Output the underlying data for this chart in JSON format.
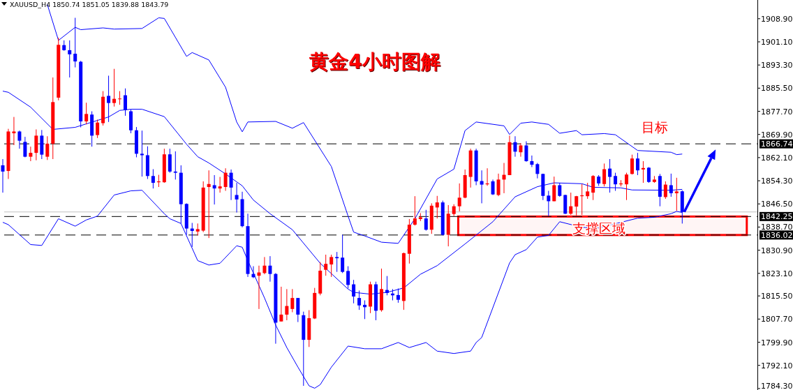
{
  "chart_data": {
    "type": "candlestick",
    "title": "黄金4小时图解",
    "categories": [
      null,
      null,
      null,
      null,
      null,
      null,
      null,
      null,
      null,
      null,
      null,
      null,
      null,
      null,
      null,
      null,
      null,
      null,
      null,
      null,
      null,
      null,
      null,
      null,
      null,
      null,
      null,
      null,
      null,
      null,
      null,
      null,
      null,
      null,
      null,
      null,
      null,
      null,
      null,
      null,
      null,
      null,
      null,
      null,
      null,
      null,
      null,
      null,
      null,
      null,
      null,
      null,
      null,
      null,
      null,
      null,
      null,
      null,
      null,
      null,
      null,
      null,
      null,
      null,
      null,
      null,
      null,
      null,
      null,
      null,
      null,
      null,
      null,
      null,
      null,
      null,
      null,
      null,
      null,
      null,
      null,
      null,
      null,
      null,
      null,
      null,
      null,
      null,
      null,
      null,
      null,
      null,
      null,
      null,
      null,
      null,
      null,
      null,
      null,
      null,
      null,
      null,
      null,
      null,
      null,
      null,
      null,
      null,
      null,
      null,
      null,
      null,
      null,
      null,
      null,
      null,
      null,
      null,
      null,
      null,
      null,
      null,
      null,
      null,
      null,
      null,
      null,
      null,
      null,
      null,
      null,
      null,
      null,
      null,
      null,
      null
    ],
    "ohlc": [
      [
        1859.5,
        1861.6,
        1850.3,
        1857.4
      ],
      [
        1857.6,
        1871.8,
        1854.9,
        1870.9
      ],
      [
        1870.3,
        1875.8,
        1866.3,
        1870.9
      ],
      [
        1870.9,
        1871.2,
        1865.1,
        1867.8
      ],
      [
        1867.4,
        1869.1,
        1862.2,
        1862.4
      ],
      [
        1862.4,
        1865.8,
        1860.9,
        1863.7
      ],
      [
        1863.7,
        1871.6,
        1861.2,
        1869.5
      ],
      [
        1869.5,
        1871.4,
        1861.6,
        1863.1
      ],
      [
        1862.4,
        1869.3,
        1861.3,
        1866.8
      ],
      [
        1866.8,
        1889.1,
        1861.6,
        1880.8
      ],
      [
        1882.3,
        1902.5,
        1881.4,
        1900.1
      ],
      [
        1900.0,
        1901.6,
        1898.1,
        1898.3
      ],
      [
        1898.3,
        1901.6,
        1889.1,
        1896.9
      ],
      [
        1897.1,
        1909.2,
        1892.5,
        1894.5
      ],
      [
        1894.4,
        1894.7,
        1872.3,
        1874.3
      ],
      [
        1874.3,
        1880.6,
        1873.3,
        1876.8
      ],
      [
        1876.6,
        1877.7,
        1865.8,
        1869.5
      ],
      [
        1869.7,
        1874.9,
        1868.7,
        1873.9
      ],
      [
        1873.7,
        1884.5,
        1872.9,
        1882.6
      ],
      [
        1882.9,
        1889.7,
        1874.1,
        1880.5
      ],
      [
        1880.5,
        1892.0,
        1879.3,
        1881.9
      ],
      [
        1881.9,
        1884.5,
        1879.9,
        1882.0
      ],
      [
        1883.1,
        1885.4,
        1876.2,
        1878.1
      ],
      [
        1877.7,
        1878.3,
        1870.3,
        1871.3
      ],
      [
        1871.3,
        1872.4,
        1862.2,
        1863.4
      ],
      [
        1863.4,
        1871.2,
        1855.7,
        1862.9
      ],
      [
        1862.9,
        1865.9,
        1854.9,
        1855.9
      ],
      [
        1855.9,
        1858.2,
        1851.7,
        1853.6
      ],
      [
        1853.8,
        1856.3,
        1852.2,
        1854.1
      ],
      [
        1853.8,
        1865.1,
        1853.6,
        1863.2
      ],
      [
        1863.2,
        1865.1,
        1857.0,
        1857.4
      ],
      [
        1857.4,
        1864.2,
        1854.7,
        1857.0
      ],
      [
        1857.0,
        1859.5,
        1839.9,
        1846.4
      ],
      [
        1846.5,
        1846.7,
        1836.1,
        1838.2
      ],
      [
        1838.2,
        1840.1,
        1832.0,
        1837.4
      ],
      [
        1837.2,
        1839.9,
        1835.9,
        1838.0
      ],
      [
        1837.5,
        1854.1,
        1837.0,
        1852.0
      ],
      [
        1852.2,
        1857.8,
        1835.0,
        1853.2
      ],
      [
        1852.8,
        1856.2,
        1846.3,
        1851.7
      ],
      [
        1851.7,
        1855.6,
        1850.3,
        1852.4
      ],
      [
        1852.2,
        1858.5,
        1850.9,
        1857.0
      ],
      [
        1857.0,
        1858.1,
        1847.8,
        1852.0
      ],
      [
        1849.5,
        1853.6,
        1843.6,
        1848.0
      ],
      [
        1848.1,
        1850.6,
        1838.6,
        1839.0
      ],
      [
        1839.0,
        1843.2,
        1821.9,
        1822.9
      ],
      [
        1822.9,
        1825.5,
        1821.5,
        1821.8
      ],
      [
        1822.3,
        1825.7,
        1811.1,
        1823.4
      ],
      [
        1823.2,
        1828.6,
        1822.8,
        1825.7
      ],
      [
        1825.7,
        1828.9,
        1820.3,
        1822.9
      ],
      [
        1822.9,
        1823.2,
        1799.4,
        1806.5
      ],
      [
        1806.9,
        1818.6,
        1806.9,
        1809.2
      ],
      [
        1809.2,
        1817.8,
        1807.3,
        1812.1
      ],
      [
        1811.1,
        1817.8,
        1810.0,
        1814.8
      ],
      [
        1814.8,
        1814.8,
        1806.7,
        1809.2
      ],
      [
        1809.0,
        1810.2,
        1785.2,
        1800.7
      ],
      [
        1800.7,
        1810.7,
        1798.3,
        1808.0
      ],
      [
        1807.9,
        1818.2,
        1807.7,
        1816.5
      ],
      [
        1816.3,
        1826.9,
        1815.7,
        1824.0
      ],
      [
        1824.3,
        1829.4,
        1822.3,
        1826.3
      ],
      [
        1826.1,
        1829.4,
        1821.9,
        1828.6
      ],
      [
        1828.6,
        1830.3,
        1823.6,
        1828.2
      ],
      [
        1828.4,
        1836.1,
        1823.2,
        1823.6
      ],
      [
        1823.9,
        1825.5,
        1818.0,
        1819.2
      ],
      [
        1819.4,
        1820.9,
        1813.0,
        1815.3
      ],
      [
        1814.8,
        1817.3,
        1810.8,
        1812.3
      ],
      [
        1812.5,
        1814.0,
        1807.7,
        1811.7
      ],
      [
        1811.9,
        1820.3,
        1809.7,
        1819.4
      ],
      [
        1819.4,
        1820.3,
        1807.3,
        1810.5
      ],
      [
        1810.7,
        1824.7,
        1810.2,
        1817.8
      ],
      [
        1817.5,
        1822.2,
        1815.7,
        1816.5
      ],
      [
        1816.3,
        1817.8,
        1814.0,
        1815.7
      ],
      [
        1815.8,
        1818.0,
        1813.2,
        1814.2
      ],
      [
        1813.8,
        1830.1,
        1810.8,
        1829.9
      ],
      [
        1829.7,
        1841.4,
        1826.4,
        1839.5
      ],
      [
        1839.5,
        1849.1,
        1839.2,
        1841.6
      ],
      [
        1841.4,
        1843.4,
        1840.7,
        1842.0
      ],
      [
        1841.6,
        1844.5,
        1837.5,
        1837.8
      ],
      [
        1837.8,
        1846.7,
        1836.4,
        1845.9
      ],
      [
        1845.3,
        1849.2,
        1841.6,
        1847.0
      ],
      [
        1847.0,
        1847.6,
        1835.9,
        1836.1
      ],
      [
        1836.1,
        1846.1,
        1832.2,
        1843.2
      ],
      [
        1843.1,
        1846.4,
        1842.4,
        1845.7
      ],
      [
        1845.7,
        1853.4,
        1844.0,
        1848.6
      ],
      [
        1848.6,
        1858.1,
        1848.4,
        1856.2
      ],
      [
        1855.6,
        1865.1,
        1852.0,
        1864.5
      ],
      [
        1864.5,
        1865.1,
        1852.8,
        1854.1
      ],
      [
        1854.2,
        1857.8,
        1846.7,
        1853.0
      ],
      [
        1853.1,
        1858.5,
        1852.6,
        1853.4
      ],
      [
        1854.1,
        1854.7,
        1849.5,
        1849.7
      ],
      [
        1849.5,
        1856.7,
        1849.1,
        1854.7
      ],
      [
        1854.7,
        1860.3,
        1850.1,
        1856.3
      ],
      [
        1856.2,
        1869.5,
        1856.2,
        1867.3
      ],
      [
        1867.3,
        1869.3,
        1862.4,
        1864.1
      ],
      [
        1863.9,
        1867.0,
        1862.4,
        1866.2
      ],
      [
        1866.2,
        1867.6,
        1860.7,
        1860.9
      ],
      [
        1860.9,
        1862.8,
        1858.9,
        1859.7
      ],
      [
        1859.9,
        1860.3,
        1855.1,
        1856.6
      ],
      [
        1856.6,
        1856.7,
        1847.8,
        1849.2
      ],
      [
        1849.3,
        1850.9,
        1842.4,
        1847.4
      ],
      [
        1847.4,
        1855.7,
        1847.4,
        1852.8
      ],
      [
        1852.8,
        1853.6,
        1848.9,
        1849.2
      ],
      [
        1849.5,
        1849.6,
        1843.1,
        1843.2
      ],
      [
        1843.2,
        1850.3,
        1842.8,
        1845.7
      ],
      [
        1845.6,
        1849.2,
        1842.6,
        1849.1
      ],
      [
        1849.1,
        1853.2,
        1842.8,
        1849.4
      ],
      [
        1849.1,
        1853.6,
        1848.2,
        1850.7
      ],
      [
        1850.3,
        1856.2,
        1847.8,
        1855.9
      ],
      [
        1855.7,
        1856.2,
        1852.6,
        1853.4
      ],
      [
        1853.2,
        1860.1,
        1852.4,
        1858.2
      ],
      [
        1858.4,
        1861.6,
        1850.3,
        1855.6
      ],
      [
        1855.9,
        1857.0,
        1850.9,
        1853.1
      ],
      [
        1853.1,
        1854.5,
        1852.4,
        1853.4
      ],
      [
        1853.1,
        1857.0,
        1847.8,
        1856.4
      ],
      [
        1856.6,
        1863.1,
        1856.4,
        1861.8
      ],
      [
        1861.8,
        1863.7,
        1856.2,
        1857.8
      ],
      [
        1858.1,
        1860.9,
        1853.6,
        1858.6
      ],
      [
        1858.7,
        1858.9,
        1853.6,
        1853.9
      ],
      [
        1853.9,
        1855.9,
        1853.6,
        1854.7
      ],
      [
        1855.9,
        1856.6,
        1845.7,
        1848.9
      ],
      [
        1848.8,
        1854.1,
        1848.2,
        1853.0
      ],
      [
        1852.8,
        1856.7,
        1848.9,
        1850.1
      ],
      [
        1850.1,
        1855.3,
        1844.2,
        1850.7
      ],
      [
        1850.74,
        1851.05,
        1839.88,
        1843.79
      ],
      null,
      null,
      null,
      null,
      null,
      null,
      null,
      null,
      null,
      null,
      null,
      null,
      null
    ],
    "colors": [
      "#0000ff",
      "#ff0000",
      "#ff0000",
      "#0000ff",
      "#0000ff",
      "#ff0000",
      "#ff0000",
      "#0000ff",
      "#ff0000",
      "#ff0000",
      "#ff0000",
      "#0000ff",
      "#0000ff",
      "#0000ff",
      "#0000ff",
      "#ff0000",
      "#0000ff",
      "#ff0000",
      "#ff0000",
      "#0000ff",
      "#ff0000",
      "#ff0000",
      "#0000ff",
      "#0000ff",
      "#0000ff",
      "#0000ff",
      "#0000ff",
      "#0000ff",
      "#ff0000",
      "#ff0000",
      "#0000ff",
      "#0000ff",
      "#0000ff",
      "#0000ff",
      "#0000ff",
      "#ff0000",
      "#ff0000",
      "#ff0000",
      "#0000ff",
      "#ff0000",
      "#ff0000",
      "#0000ff",
      "#0000ff",
      "#0000ff",
      "#0000ff",
      "#0000ff",
      "#ff0000",
      "#ff0000",
      "#0000ff",
      "#0000ff",
      "#ff0000",
      "#ff0000",
      "#ff0000",
      "#0000ff",
      "#0000ff",
      "#ff0000",
      "#ff0000",
      "#ff0000",
      "#ff0000",
      "#ff0000",
      "#0000ff",
      "#0000ff",
      "#0000ff",
      "#0000ff",
      "#0000ff",
      "#0000ff",
      "#ff0000",
      "#0000ff",
      "#ff0000",
      "#0000ff",
      "#0000ff",
      "#0000ff",
      "#ff0000",
      "#ff0000",
      "#ff0000",
      "#ff0000",
      "#0000ff",
      "#ff0000",
      "#ff0000",
      "#0000ff",
      "#ff0000",
      "#ff0000",
      "#ff0000",
      "#ff0000",
      "#ff0000",
      "#0000ff",
      "#0000ff",
      "#ff0000",
      "#0000ff",
      "#ff0000",
      "#ff0000",
      "#ff0000",
      "#0000ff",
      "#ff0000",
      "#0000ff",
      "#0000ff",
      "#0000ff",
      "#0000ff",
      "#0000ff",
      "#ff0000",
      "#0000ff",
      "#0000ff",
      "#ff0000",
      "#ff0000",
      "#ff0000",
      "#ff0000",
      "#ff0000",
      "#0000ff",
      "#ff0000",
      "#0000ff",
      "#0000ff",
      "#ff0000",
      "#ff0000",
      "#ff0000",
      "#0000ff",
      "#ff0000",
      "#0000ff",
      "#ff0000",
      "#0000ff",
      "#ff0000",
      "#0000ff",
      "#ff0000",
      "#0000ff",
      null,
      null,
      null,
      null,
      null,
      null,
      null,
      null,
      null,
      null,
      null,
      null,
      null
    ],
    "series": [
      {
        "type": "line",
        "color": "#0000ff",
        "values": [
          null,
          null,
          null,
          null,
          null,
          null,
          null,
          null,
          1913.7,
          null,
          1901.6,
          null,
          null,
          1906.0,
          1905.2,
          null,
          null,
          null,
          1905.8,
          null,
          1905.4,
          null,
          null,
          null,
          null,
          1905.6,
          null,
          null,
          1909.2,
          1909.0,
          null,
          null,
          null,
          1896.2,
          1897.5,
          null,
          null,
          1895.0,
          null,
          null,
          1885.8,
          null,
          1874.1,
          1870.8,
          1874.1,
          null,
          null,
          null,
          null,
          1874.3,
          null,
          null,
          1872.0,
          null,
          1873.9,
          null,
          null,
          null,
          null,
          1859.1,
          null,
          null,
          1842.4,
          1837.0,
          null,
          1835.7,
          null,
          null,
          1833.6,
          null,
          null,
          1833.2,
          null,
          null,
          1841.5,
          null,
          null,
          null,
          1854.9,
          null,
          null,
          1858.2,
          null,
          1871.2,
          null,
          1874.1,
          null,
          null,
          null,
          null,
          1872.8,
          1869.9,
          null,
          1873.7,
          null,
          1874.1,
          null,
          null,
          1873.3,
          null,
          1870.3,
          null,
          null,
          1871.2,
          1869.8,
          null,
          null,
          null,
          1870.2,
          null,
          1869.8,
          null,
          null,
          null,
          1864.5,
          null,
          null,
          null,
          null,
          null,
          1863.9,
          1863.1,
          1863.3,
          null,
          null,
          null,
          null,
          null,
          null,
          null,
          null,
          null,
          null,
          null,
          null,
          null
        ]
      },
      {
        "type": "line",
        "color": "#0000ff",
        "values": [
          1884.5,
          1884.1,
          null,
          null,
          null,
          1879.1,
          null,
          null,
          null,
          1871.6,
          null,
          null,
          null,
          1872.3,
          null,
          null,
          null,
          null,
          null,
          1875.8,
          null,
          1878.0,
          null,
          1878.4,
          null,
          1878.4,
          null,
          null,
          null,
          1875.9,
          null,
          null,
          null,
          1866.6,
          null,
          1862.4,
          null,
          1860.3,
          null,
          null,
          1856.6,
          null,
          null,
          1852.6,
          null,
          1847.8,
          null,
          null,
          1843.2,
          null,
          null,
          null,
          1837.8,
          null,
          null,
          null,
          null,
          1826.5,
          null,
          null,
          null,
          null,
          1817.8,
          1816.7,
          null,
          null,
          1816.1,
          null,
          null,
          1816.7,
          null,
          null,
          1818.2,
          null,
          null,
          1822.8,
          null,
          null,
          1825.7,
          null,
          null,
          null,
          null,
          1833.0,
          null,
          null,
          null,
          null,
          1840.5,
          null,
          null,
          null,
          1848.9,
          null,
          null,
          null,
          1852.3,
          null,
          null,
          1853.6,
          null,
          null,
          null,
          null,
          1853.3,
          null,
          1852.1,
          null,
          null,
          null,
          null,
          1851.9,
          null,
          1851.2,
          null,
          null,
          null,
          null,
          null,
          null,
          1851.1,
          null,
          1851.4,
          null,
          null,
          null,
          null,
          null,
          null,
          null,
          null,
          null,
          null,
          null,
          null,
          null
        ]
      },
      {
        "type": "line",
        "color": "#0000ff",
        "values": [
          1840.3,
          1839.5,
          null,
          null,
          null,
          1832.8,
          null,
          1832.5,
          null,
          null,
          1841.5,
          null,
          null,
          1839.0,
          null,
          1841.1,
          null,
          1842.4,
          null,
          null,
          1849.5,
          null,
          null,
          1850.9,
          null,
          1851.1,
          null,
          null,
          null,
          1843.2,
          1841.5,
          null,
          1839.9,
          null,
          null,
          1827.4,
          null,
          1825.9,
          null,
          1826.5,
          null,
          null,
          1832.4,
          1831.9,
          1827.4,
          null,
          null,
          1814.8,
          null,
          1805.7,
          null,
          1798.1,
          null,
          1791.5,
          null,
          1785.2,
          1784.4,
          1785.6,
          null,
          1791.5,
          null,
          null,
          1798.6,
          null,
          null,
          1797.7,
          null,
          null,
          1797.7,
          null,
          null,
          1799.8,
          null,
          1798.1,
          null,
          null,
          1799.8,
          null,
          1796.9,
          null,
          null,
          1796.1,
          null,
          null,
          1796.9,
          1799.8,
          1801.5,
          null,
          null,
          null,
          null,
          1826.6,
          1829.4,
          null,
          1831.1,
          null,
          1835.3,
          null,
          1835.9,
          null,
          1840.5,
          null,
          null,
          null,
          1838.6,
          null,
          null,
          1838.4,
          null,
          null,
          null,
          null,
          null,
          null,
          1841.7,
          null,
          null,
          1842.0,
          null,
          null,
          1843.2,
          1844.0,
          1843.6,
          null,
          null,
          null,
          null,
          null,
          null,
          null,
          null,
          null,
          null,
          null,
          null,
          null
        ]
      }
    ],
    "ylim": [
      1783.8,
      1915.2
    ],
    "yticks": [
      {
        "value": 1908.9,
        "label": "1908.90"
      },
      {
        "value": 1901.1,
        "label": "1901.10"
      },
      {
        "value": 1893.3,
        "label": "1893.30"
      },
      {
        "value": 1885.5,
        "label": "1885.50"
      },
      {
        "value": 1877.7,
        "label": "1877.70"
      },
      {
        "value": 1869.9,
        "label": "1869.90"
      },
      {
        "value": 1862.1,
        "label": "1862.10"
      },
      {
        "value": 1854.3,
        "label": "1854.30"
      },
      {
        "value": 1846.5,
        "label": "1846.50"
      },
      {
        "value": 1838.7,
        "label": "1838.70"
      },
      {
        "value": 1830.9,
        "label": "1830.90"
      },
      {
        "value": 1823.1,
        "label": "1823.10"
      },
      {
        "value": 1815.5,
        "label": "1815.50"
      },
      {
        "value": 1807.7,
        "label": "1807.70"
      },
      {
        "value": 1799.9,
        "label": "1799.90"
      },
      {
        "value": 1792.1,
        "label": "1792.10"
      },
      {
        "value": 1784.3,
        "label": "1784.30"
      }
    ],
    "tick_labels": "y",
    "ref_lines": [
      {
        "axis": "y",
        "value": 1866.74,
        "label": "1866.74",
        "color": "#000000",
        "line_style": "dashed"
      },
      {
        "axis": "y",
        "value": 1843.79,
        "color": "#c0c0c0",
        "line_style": "solid"
      },
      {
        "axis": "y",
        "value": 1842.25,
        "label": "1842.25",
        "color": "#000000",
        "line_style": "dashed"
      },
      {
        "axis": "y",
        "value": 1836.02,
        "label": "1836.02",
        "color": "#000000",
        "line_style": "dashed"
      }
    ],
    "bands": [
      {
        "axis": "y",
        "from": 1836.02,
        "to": 1842.25,
        "label": "支撑区域",
        "color": "#ff0000"
      }
    ],
    "annotations": [
      "XAUUSD_H4  1850.74 1851.05 1839.88 1843.79",
      "目标"
    ]
  }
}
